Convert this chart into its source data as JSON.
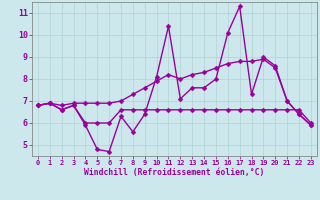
{
  "xlabel": "Windchill (Refroidissement éolien,°C)",
  "background_color": "#cce8ed",
  "line_color": "#990099",
  "grid_color": "#aacccc",
  "x_values": [
    0,
    1,
    2,
    3,
    4,
    5,
    6,
    7,
    8,
    9,
    10,
    11,
    12,
    13,
    14,
    15,
    16,
    17,
    18,
    19,
    20,
    21,
    22,
    23
  ],
  "series1": [
    6.8,
    6.9,
    6.6,
    6.8,
    5.9,
    4.8,
    4.7,
    6.3,
    5.6,
    6.4,
    8.1,
    10.4,
    7.1,
    7.6,
    7.6,
    8.0,
    10.1,
    11.3,
    7.3,
    9.0,
    8.6,
    7.0,
    6.4,
    5.9
  ],
  "series2": [
    6.8,
    6.9,
    6.6,
    6.8,
    6.0,
    6.0,
    6.0,
    6.6,
    6.6,
    6.6,
    6.6,
    6.6,
    6.6,
    6.6,
    6.6,
    6.6,
    6.6,
    6.6,
    6.6,
    6.6,
    6.6,
    6.6,
    6.6,
    6.0
  ],
  "series3": [
    6.8,
    6.9,
    6.8,
    6.9,
    6.9,
    6.9,
    6.9,
    7.0,
    7.3,
    7.6,
    7.9,
    8.2,
    8.0,
    8.2,
    8.3,
    8.5,
    8.7,
    8.8,
    8.8,
    8.9,
    8.5,
    7.0,
    6.4,
    5.9
  ],
  "ylim": [
    4.5,
    11.5
  ],
  "xlim": [
    -0.5,
    23.5
  ],
  "yticks": [
    5,
    6,
    7,
    8,
    9,
    10,
    11
  ],
  "xticks": [
    0,
    1,
    2,
    3,
    4,
    5,
    6,
    7,
    8,
    9,
    10,
    11,
    12,
    13,
    14,
    15,
    16,
    17,
    18,
    19,
    20,
    21,
    22,
    23
  ],
  "markersize": 2.5,
  "linewidth": 1.0
}
